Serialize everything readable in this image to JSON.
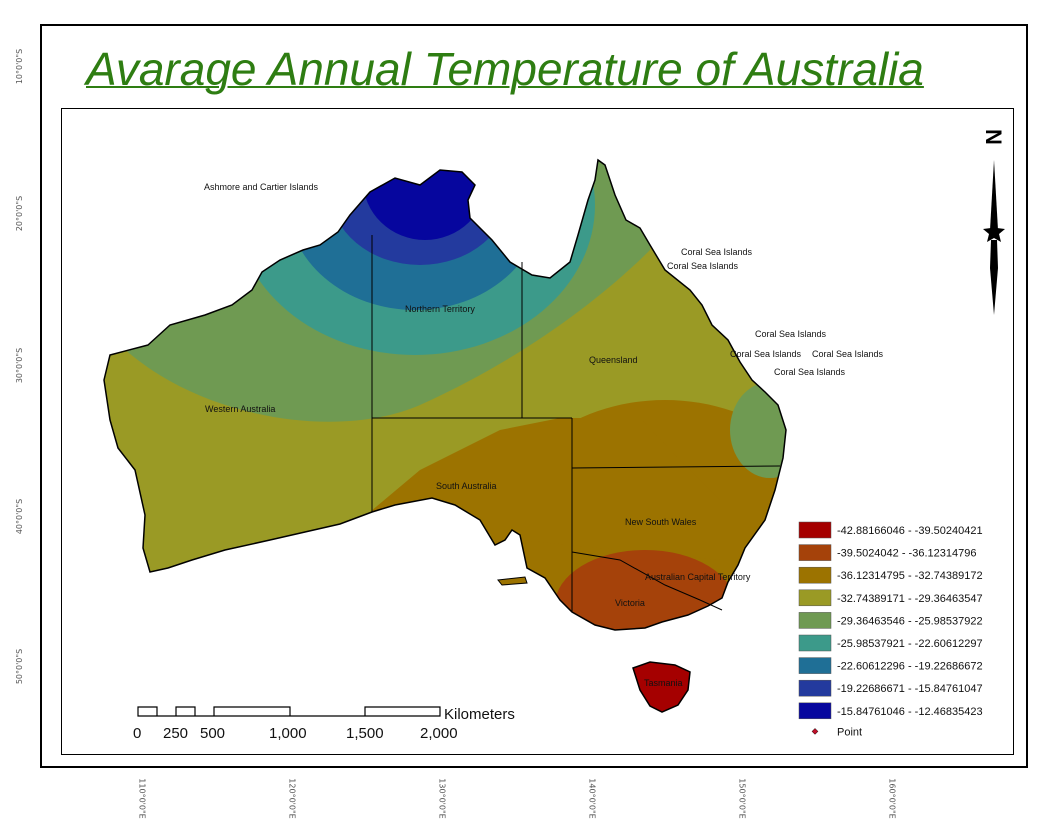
{
  "title": "Avarage Annual Temperature of Australia",
  "colors": {
    "title": "#2e7d12",
    "classes": [
      "#a50000",
      "#a5420a",
      "#9c7300",
      "#9a9a25",
      "#6f9a52",
      "#3c9a8a",
      "#1f6f96",
      "#233a9e",
      "#06069e"
    ],
    "point": "#c0102a"
  },
  "lat_ticks": [
    "10°0'0\"S",
    "20°0'0\"S",
    "30°0'0\"S",
    "40°0'0\"S",
    "50°0'0\"S"
  ],
  "lon_ticks": [
    "110°0'0\"E",
    "120°0'0\"E",
    "130°0'0\"E",
    "140°0'0\"E",
    "150°0'0\"E",
    "160°0'0\"E"
  ],
  "labels": {
    "ashmore": "Ashmore and Cartier Islands",
    "nt": "Northern Territory",
    "qld": "Queensland",
    "wa": "Western Australia",
    "sa": "South Australia",
    "nsw": "New South Wales",
    "act": "Australian Capital Territory",
    "vic": "Victoria",
    "tas": "Tasmania",
    "coral": "Coral Sea Islands",
    "coral2": "Coral Sea Islands",
    "coral3": "Coral Sea Islands",
    "coral4": "Coral Sea Islands",
    "coral5": "Coral Sea Islands",
    "coral6": "Coral Sea Islands"
  },
  "north_arrow": "N",
  "legend": [
    {
      "label": "-42.88166046 - -39.50240421"
    },
    {
      "label": "-39.5024042 - -36.12314796"
    },
    {
      "label": "-36.12314795 - -32.74389172"
    },
    {
      "label": "-32.74389171 - -29.36463547"
    },
    {
      "label": "-29.36463546 - -25.98537922"
    },
    {
      "label": "-25.98537921 - -22.60612297"
    },
    {
      "label": "-22.60612296 - -19.22686672"
    },
    {
      "label": "-19.22686671 - -15.84761047"
    },
    {
      "label": "-15.84761046 - -12.46835423"
    }
  ],
  "legend_point": "Point",
  "scalebar": {
    "unit": "Kilometers",
    "ticks": [
      "0",
      "250",
      "500",
      "1,000",
      "1,500",
      "2,000"
    ]
  }
}
